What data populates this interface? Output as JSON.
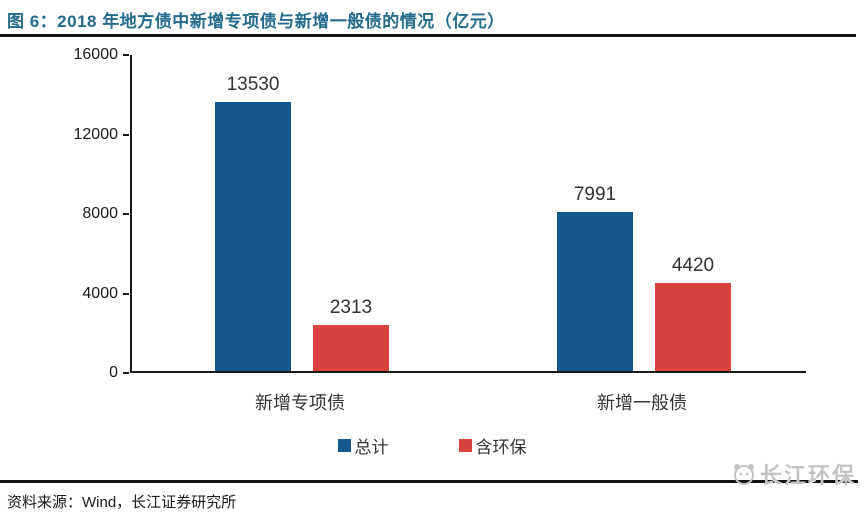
{
  "header": {
    "title": "图 6：2018 年地方债中新增专项债与新增一般债的情况（亿元）",
    "title_color": "#246B8D"
  },
  "chart_data": {
    "type": "bar",
    "title": "图 6：2018 年地方债中新增专项债与新增一般债的情况（亿元）",
    "categories": [
      "新增专项债",
      "新增一般债"
    ],
    "series": [
      {
        "name": "总计",
        "color": "#14598C",
        "values": [
          13530,
          7991
        ]
      },
      {
        "name": "含环保",
        "color": "#D8433F",
        "values": [
          2313,
          4420
        ]
      }
    ],
    "ylim": [
      0,
      16000
    ],
    "yticks": [
      0,
      4000,
      8000,
      12000,
      16000
    ],
    "grid": false,
    "data_labels": true,
    "legend_position": "bottom"
  },
  "footer": {
    "source": "资料来源：Wind，长江证券研究所",
    "watermark": "长江环保"
  }
}
